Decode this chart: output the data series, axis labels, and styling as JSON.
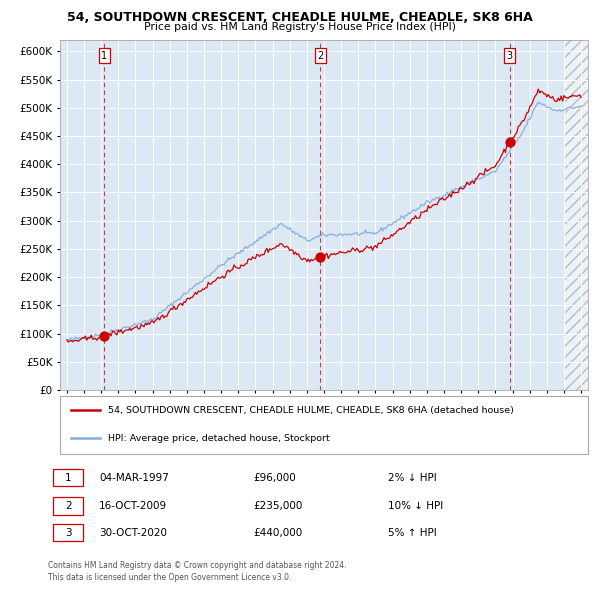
{
  "title": "54, SOUTHDOWN CRESCENT, CHEADLE HULME, CHEADLE, SK8 6HA",
  "subtitle": "Price paid vs. HM Land Registry's House Price Index (HPI)",
  "legend_label_red": "54, SOUTHDOWN CRESCENT, CHEADLE HULME, CHEADLE, SK8 6HA (detached house)",
  "legend_label_blue": "HPI: Average price, detached house, Stockport",
  "footnote": "Contains HM Land Registry data © Crown copyright and database right 2024.\nThis data is licensed under the Open Government Licence v3.0.",
  "sales": [
    {
      "num": 1,
      "date": "04-MAR-1997",
      "price": 96000,
      "pct": "2%",
      "dir": "↓",
      "year": 1997.17
    },
    {
      "num": 2,
      "date": "16-OCT-2009",
      "price": 235000,
      "pct": "10%",
      "dir": "↓",
      "year": 2009.79
    },
    {
      "num": 3,
      "date": "30-OCT-2020",
      "price": 440000,
      "pct": "5%",
      "dir": "↑",
      "year": 2020.83
    }
  ],
  "ylim": [
    0,
    620000
  ],
  "yticks": [
    0,
    50000,
    100000,
    150000,
    200000,
    250000,
    300000,
    350000,
    400000,
    450000,
    500000,
    550000,
    600000
  ],
  "xlim_start": 1994.6,
  "xlim_end": 2025.4,
  "bg_color": "#dce9f5",
  "grid_color": "#ffffff",
  "red_line_color": "#cc0000",
  "blue_line_color": "#88aadd",
  "hatch_start": 2024.0
}
